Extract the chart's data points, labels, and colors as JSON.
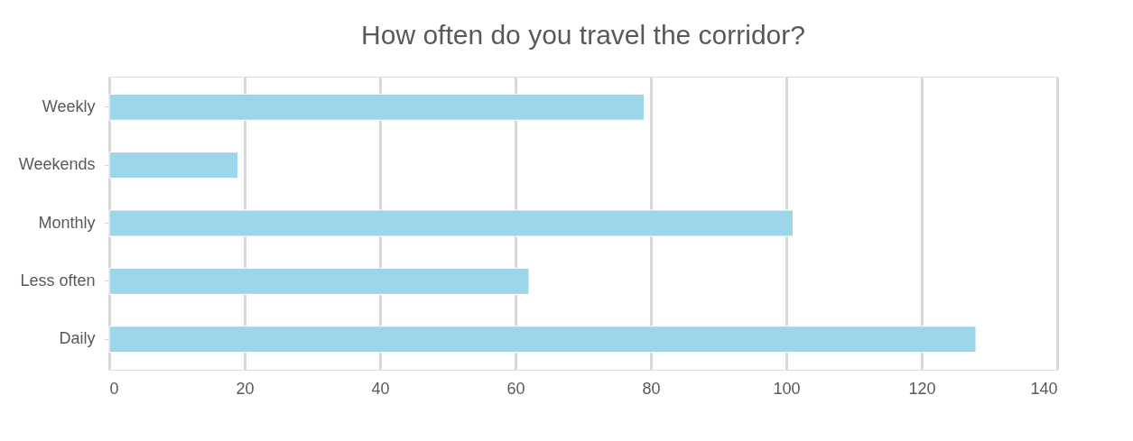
{
  "chart_data": {
    "type": "bar",
    "orientation": "horizontal",
    "title": "How often do you travel the corridor?",
    "categories": [
      "Weekly",
      "Weekends",
      "Monthly",
      "Less often",
      "Daily"
    ],
    "values": [
      79,
      19,
      101,
      62,
      128
    ],
    "color": "#9dd5ea",
    "xlim": [
      0,
      140
    ],
    "xticks": [
      0,
      20,
      40,
      60,
      80,
      100,
      120,
      140
    ],
    "grid": "x"
  }
}
